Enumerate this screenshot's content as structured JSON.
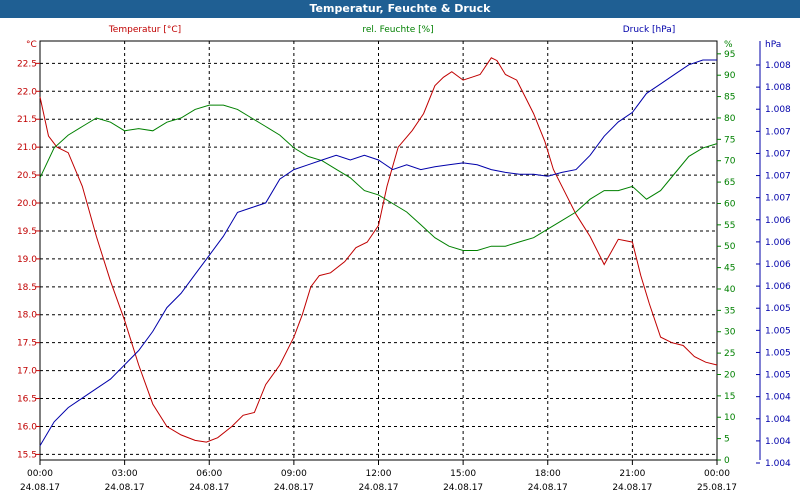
{
  "window": {
    "title": "Temperatur, Feuchte & Druck"
  },
  "colors": {
    "temperature": "#c00000",
    "humidity": "#008000",
    "pressure": "#0000aa",
    "grid": "#000000",
    "titlebar": "#1f5f93"
  },
  "chart_data": {
    "type": "line",
    "title": "Temperatur, Feuchte & Druck",
    "grid": true,
    "x_ticks": [
      {
        "time": "00:00",
        "date": "24.08.17"
      },
      {
        "time": "03:00",
        "date": "24.08.17"
      },
      {
        "time": "06:00",
        "date": "24.08.17"
      },
      {
        "time": "09:00",
        "date": "24.08.17"
      },
      {
        "time": "12:00",
        "date": "24.08.17"
      },
      {
        "time": "15:00",
        "date": "24.08.17"
      },
      {
        "time": "18:00",
        "date": "24.08.17"
      },
      {
        "time": "21:00",
        "date": "24.08.17"
      },
      {
        "time": "00:00",
        "date": "25.08.17"
      }
    ],
    "x_range_hours": [
      0,
      24
    ],
    "axes": {
      "temperature": {
        "label": "Temperatur [°C]",
        "unit": "°C",
        "ylim": [
          15.4,
          22.9
        ],
        "ticks": [
          "15.5",
          "16.0",
          "16.5",
          "17.0",
          "17.5",
          "18.0",
          "18.5",
          "19.0",
          "19.5",
          "20.0",
          "20.5",
          "21.0",
          "21.5",
          "22.0",
          "22.5"
        ]
      },
      "humidity": {
        "label": "rel. Feuchte [%]",
        "unit": "%",
        "ylim": [
          0,
          98
        ],
        "ticks": [
          "0",
          "5",
          "10",
          "15",
          "20",
          "25",
          "30",
          "35",
          "40",
          "45",
          "50",
          "55",
          "60",
          "65",
          "70",
          "75",
          "80",
          "85",
          "90",
          "95"
        ]
      },
      "pressure": {
        "label": "Druck [hPa]",
        "unit": "hPa",
        "ylim": [
          1003.9,
          1008.3
        ],
        "ticks": [
          "1.004",
          "1.004",
          "1.004",
          "1.004",
          "1.005",
          "1.005",
          "1.005",
          "1.005",
          "1.006",
          "1.006",
          "1.006",
          "1.006",
          "1.007",
          "1.007",
          "1.007",
          "1.007",
          "1.008",
          "1.008",
          "1.008"
        ]
      }
    },
    "series": [
      {
        "name": "Temperatur [°C]",
        "axis": "temperature",
        "x": [
          0,
          0.3,
          0.6,
          1,
          1.5,
          2,
          2.5,
          3,
          3.5,
          4,
          4.5,
          5,
          5.5,
          5.9,
          6.3,
          6.8,
          7.2,
          7.6,
          8,
          8.5,
          9,
          9.3,
          9.6,
          9.9,
          10.3,
          10.8,
          11.2,
          11.6,
          12,
          12.3,
          12.7,
          13.2,
          13.6,
          14,
          14.3,
          14.6,
          15,
          15.3,
          15.6,
          16,
          16.2,
          16.5,
          16.9,
          17.2,
          17.5,
          17.9,
          18.2,
          18.6,
          19,
          19.5,
          20,
          20.5,
          21,
          21.3,
          21.6,
          22,
          22.4,
          22.8,
          23.2,
          23.6,
          24
        ],
        "values": [
          21.9,
          21.2,
          21.0,
          20.9,
          20.3,
          19.4,
          18.6,
          17.9,
          17.1,
          16.4,
          16.0,
          15.85,
          15.75,
          15.72,
          15.8,
          16.0,
          16.2,
          16.25,
          16.75,
          17.1,
          17.6,
          18.0,
          18.5,
          18.7,
          18.75,
          18.95,
          19.2,
          19.3,
          19.6,
          20.3,
          21.0,
          21.3,
          21.6,
          22.1,
          22.25,
          22.35,
          22.2,
          22.25,
          22.3,
          22.6,
          22.55,
          22.3,
          22.2,
          21.9,
          21.6,
          21.1,
          20.6,
          20.2,
          19.8,
          19.4,
          18.9,
          19.35,
          19.3,
          18.7,
          18.2,
          17.6,
          17.5,
          17.45,
          17.25,
          17.15,
          17.1
        ]
      },
      {
        "name": "rel. Feuchte [%]",
        "axis": "humidity",
        "x": [
          0,
          0.5,
          1,
          1.5,
          2,
          2.5,
          3,
          3.5,
          4,
          4.5,
          5,
          5.5,
          6,
          6.5,
          7,
          7.5,
          8,
          8.5,
          9,
          9.5,
          10,
          10.5,
          11,
          11.5,
          12,
          12.5,
          13,
          13.5,
          14,
          14.5,
          15,
          15.5,
          16,
          16.5,
          17,
          17.5,
          18,
          18.5,
          19,
          19.5,
          20,
          20.5,
          21,
          21.5,
          22,
          22.5,
          23,
          23.5,
          24
        ],
        "values": [
          66,
          73,
          76,
          78,
          80,
          79,
          77,
          77.5,
          77,
          79,
          80,
          82,
          83,
          83,
          82,
          80,
          78,
          76,
          73,
          71,
          70,
          68,
          66,
          63,
          62,
          60,
          58,
          55,
          52,
          50,
          49,
          49,
          50,
          50,
          51,
          52,
          54,
          56,
          58,
          61,
          63,
          63,
          64,
          61,
          63,
          67,
          71,
          73,
          74
        ]
      },
      {
        "name": "Druck [hPa]",
        "axis": "pressure",
        "x": [
          0,
          0.5,
          1,
          1.5,
          2,
          2.5,
          3,
          3.5,
          4,
          4.5,
          5,
          5.5,
          6,
          6.5,
          7,
          7.5,
          8,
          8.5,
          9,
          9.5,
          10,
          10.5,
          11,
          11.5,
          12,
          12.5,
          13,
          13.5,
          14,
          14.5,
          15,
          15.5,
          16,
          16.5,
          17,
          17.5,
          18,
          18.5,
          19,
          19.5,
          20,
          20.5,
          21,
          21.5,
          22,
          22.5,
          23,
          23.5,
          24
        ],
        "values": [
          1004.05,
          1004.3,
          1004.45,
          1004.55,
          1004.65,
          1004.75,
          1004.9,
          1005.05,
          1005.25,
          1005.5,
          1005.65,
          1005.85,
          1006.05,
          1006.25,
          1006.5,
          1006.55,
          1006.6,
          1006.85,
          1006.95,
          1007.0,
          1007.05,
          1007.1,
          1007.05,
          1007.1,
          1007.05,
          1006.95,
          1007.0,
          1006.95,
          1006.98,
          1007.0,
          1007.02,
          1007.0,
          1006.95,
          1006.92,
          1006.9,
          1006.9,
          1006.88,
          1006.92,
          1006.95,
          1007.1,
          1007.3,
          1007.45,
          1007.55,
          1007.75,
          1007.85,
          1007.95,
          1008.05,
          1008.1,
          1008.1
        ]
      }
    ]
  }
}
